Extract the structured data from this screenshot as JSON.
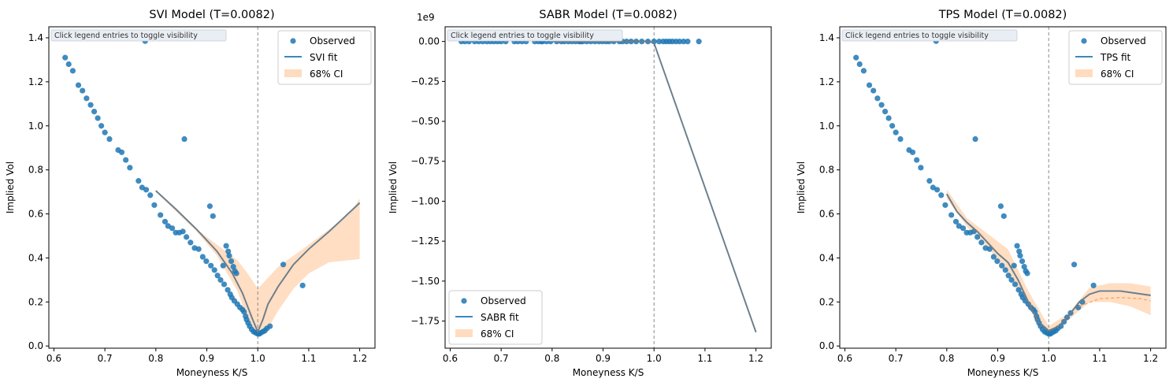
{
  "hint": "Click legend entries to toggle visibility",
  "colors": {
    "observed": "#1f77b4",
    "fit": "#1f77b4",
    "fit_overlay": "#7f7f7f",
    "ci": "#ffdcc0",
    "spot_line": "#888888",
    "tps_dashed": "#ff9f4a"
  },
  "chart_data": [
    {
      "type": "scatter",
      "title": "SVI Model (T=0.0082)",
      "xlabel": "Moneyness K/S",
      "ylabel": "Implied Vol",
      "xlim": [
        0.59,
        1.23
      ],
      "ylim": [
        -0.01,
        1.45
      ],
      "x_ticks": [
        "0.6",
        "0.7",
        "0.8",
        "0.9",
        "1.0",
        "1.1",
        "1.2"
      ],
      "x_tick_values": [
        0.6,
        0.7,
        0.8,
        0.9,
        1.0,
        1.1,
        1.2
      ],
      "y_ticks": [
        "0.0",
        "0.2",
        "0.4",
        "0.6",
        "0.8",
        "1.0",
        "1.2",
        "1.4"
      ],
      "y_tick_values": [
        0.0,
        0.2,
        0.4,
        0.6,
        0.8,
        1.0,
        1.2,
        1.4
      ],
      "y_offset_label": "",
      "legend": {
        "position": "top-right",
        "entries": [
          "Observed",
          "SVI fit",
          "68% CI"
        ]
      },
      "spot_x": 1.0,
      "observed": [
        [
          0.622,
          1.31
        ],
        [
          0.629,
          1.28
        ],
        [
          0.637,
          1.25
        ],
        [
          0.648,
          1.185
        ],
        [
          0.656,
          1.16
        ],
        [
          0.664,
          1.125
        ],
        [
          0.672,
          1.095
        ],
        [
          0.679,
          1.065
        ],
        [
          0.686,
          1.035
        ],
        [
          0.693,
          1.0
        ],
        [
          0.7,
          0.97
        ],
        [
          0.709,
          0.94
        ],
        [
          0.726,
          0.89
        ],
        [
          0.733,
          0.88
        ],
        [
          0.741,
          0.845
        ],
        [
          0.749,
          0.81
        ],
        [
          0.766,
          0.75
        ],
        [
          0.773,
          0.72
        ],
        [
          0.779,
          1.385
        ],
        [
          0.781,
          0.71
        ],
        [
          0.789,
          0.685
        ],
        [
          0.797,
          0.64
        ],
        [
          0.809,
          0.595
        ],
        [
          0.818,
          0.565
        ],
        [
          0.824,
          0.545
        ],
        [
          0.832,
          0.535
        ],
        [
          0.839,
          0.515
        ],
        [
          0.846,
          0.515
        ],
        [
          0.853,
          0.52
        ],
        [
          0.856,
          0.94
        ],
        [
          0.86,
          0.495
        ],
        [
          0.868,
          0.47
        ],
        [
          0.876,
          0.445
        ],
        [
          0.884,
          0.44
        ],
        [
          0.892,
          0.405
        ],
        [
          0.899,
          0.385
        ],
        [
          0.906,
          0.635
        ],
        [
          0.908,
          0.365
        ],
        [
          0.912,
          0.59
        ],
        [
          0.915,
          0.345
        ],
        [
          0.921,
          0.32
        ],
        [
          0.927,
          0.3
        ],
        [
          0.932,
          0.365
        ],
        [
          0.934,
          0.28
        ],
        [
          0.938,
          0.455
        ],
        [
          0.941,
          0.255
        ],
        [
          0.942,
          0.43
        ],
        [
          0.944,
          0.41
        ],
        [
          0.946,
          0.235
        ],
        [
          0.948,
          0.385
        ],
        [
          0.949,
          0.22
        ],
        [
          0.952,
          0.36
        ],
        [
          0.954,
          0.205
        ],
        [
          0.955,
          0.34
        ],
        [
          0.958,
          0.33
        ],
        [
          0.96,
          0.19
        ],
        [
          0.965,
          0.175
        ],
        [
          0.97,
          0.165
        ],
        [
          0.973,
          0.155
        ],
        [
          0.976,
          0.135
        ],
        [
          0.978,
          0.12
        ],
        [
          0.981,
          0.105
        ],
        [
          0.984,
          0.09
        ],
        [
          0.988,
          0.075
        ],
        [
          0.992,
          0.065
        ],
        [
          0.996,
          0.06
        ],
        [
          1.0,
          0.055
        ],
        [
          1.003,
          0.055
        ],
        [
          1.006,
          0.06
        ],
        [
          1.01,
          0.065
        ],
        [
          1.014,
          0.07
        ],
        [
          1.018,
          0.08
        ],
        [
          1.024,
          0.09
        ],
        [
          1.05,
          0.37
        ],
        [
          1.088,
          0.275
        ]
      ],
      "fit": [
        [
          0.8,
          0.705
        ],
        [
          0.84,
          0.62
        ],
        [
          0.88,
          0.53
        ],
        [
          0.92,
          0.43
        ],
        [
          0.95,
          0.33
        ],
        [
          0.97,
          0.24
        ],
        [
          0.99,
          0.12
        ],
        [
          1.0,
          0.065
        ],
        [
          1.01,
          0.12
        ],
        [
          1.02,
          0.19
        ],
        [
          1.04,
          0.27
        ],
        [
          1.07,
          0.37
        ],
        [
          1.1,
          0.44
        ],
        [
          1.14,
          0.52
        ],
        [
          1.2,
          0.65
        ]
      ],
      "ci_band": [
        [
          0.8,
          0.71,
          0.7
        ],
        [
          0.88,
          0.53,
          0.52
        ],
        [
          0.92,
          0.46,
          0.41
        ],
        [
          0.96,
          0.39,
          0.25
        ],
        [
          0.98,
          0.33,
          0.12
        ],
        [
          1.0,
          0.26,
          0.05
        ],
        [
          1.02,
          0.31,
          0.08
        ],
        [
          1.04,
          0.36,
          0.16
        ],
        [
          1.07,
          0.41,
          0.26
        ],
        [
          1.1,
          0.46,
          0.33
        ],
        [
          1.14,
          0.53,
          0.38
        ],
        [
          1.18,
          0.6,
          0.39
        ],
        [
          1.2,
          0.67,
          0.395
        ]
      ],
      "fit_dashed": []
    },
    {
      "type": "scatter",
      "title": "SABR Model (T=0.0082)",
      "xlabel": "Moneyness K/S",
      "ylabel": "Implied Vol",
      "xlim": [
        0.59,
        1.23
      ],
      "ylim": [
        -1.92,
        0.092
      ],
      "x_ticks": [
        "0.6",
        "0.7",
        "0.8",
        "0.9",
        "1.0",
        "1.1",
        "1.2"
      ],
      "x_tick_values": [
        0.6,
        0.7,
        0.8,
        0.9,
        1.0,
        1.1,
        1.2
      ],
      "y_ticks": [
        "0.00",
        "−0.25",
        "−0.50",
        "−0.75",
        "−1.00",
        "−1.25",
        "−1.50",
        "−1.75"
      ],
      "y_tick_values": [
        0.0,
        -0.25,
        -0.5,
        -0.75,
        -1.0,
        -1.25,
        -1.5,
        -1.75
      ],
      "y_offset_label": "1e9",
      "legend": {
        "position": "bottom-left",
        "entries": [
          "Observed",
          "SABR fit",
          "68% CI"
        ]
      },
      "spot_x": 1.0,
      "observed": [
        [
          0.622,
          0
        ],
        [
          0.629,
          0
        ],
        [
          0.637,
          0
        ],
        [
          0.648,
          0
        ],
        [
          0.656,
          0
        ],
        [
          0.664,
          0
        ],
        [
          0.672,
          0
        ],
        [
          0.679,
          0
        ],
        [
          0.686,
          0
        ],
        [
          0.693,
          0
        ],
        [
          0.7,
          0
        ],
        [
          0.709,
          0
        ],
        [
          0.726,
          0
        ],
        [
          0.733,
          0
        ],
        [
          0.741,
          0
        ],
        [
          0.749,
          0
        ],
        [
          0.766,
          0
        ],
        [
          0.773,
          0
        ],
        [
          0.779,
          0
        ],
        [
          0.781,
          0
        ],
        [
          0.789,
          0
        ],
        [
          0.797,
          0
        ],
        [
          0.809,
          0
        ],
        [
          0.818,
          0
        ],
        [
          0.824,
          0
        ],
        [
          0.832,
          0
        ],
        [
          0.839,
          0
        ],
        [
          0.846,
          0
        ],
        [
          0.853,
          0
        ],
        [
          0.856,
          0
        ],
        [
          0.86,
          0
        ],
        [
          0.868,
          0
        ],
        [
          0.876,
          0
        ],
        [
          0.884,
          0
        ],
        [
          0.892,
          0
        ],
        [
          0.899,
          0
        ],
        [
          0.906,
          0
        ],
        [
          0.912,
          0
        ],
        [
          0.921,
          0
        ],
        [
          0.932,
          0
        ],
        [
          0.938,
          0
        ],
        [
          0.946,
          0
        ],
        [
          0.955,
          0
        ],
        [
          0.965,
          0
        ],
        [
          0.976,
          0
        ],
        [
          0.988,
          0
        ],
        [
          1.0,
          0
        ],
        [
          1.01,
          0
        ],
        [
          1.018,
          0
        ],
        [
          1.024,
          0
        ],
        [
          1.03,
          0
        ],
        [
          1.036,
          0
        ],
        [
          1.043,
          0
        ],
        [
          1.05,
          0
        ],
        [
          1.058,
          0
        ],
        [
          1.066,
          0
        ],
        [
          1.088,
          0
        ]
      ],
      "fit": [
        [
          0.8,
          0
        ],
        [
          0.9,
          0
        ],
        [
          0.99,
          0
        ],
        [
          1.0,
          -0.01
        ],
        [
          1.2,
          -1.82
        ]
      ],
      "ci_band": [],
      "fit_dashed": []
    },
    {
      "type": "scatter",
      "title": "TPS Model (T=0.0082)",
      "xlabel": "Moneyness K/S",
      "ylabel": "Implied Vol",
      "xlim": [
        0.59,
        1.23
      ],
      "ylim": [
        -0.01,
        1.45
      ],
      "x_ticks": [
        "0.6",
        "0.7",
        "0.8",
        "0.9",
        "1.0",
        "1.1",
        "1.2"
      ],
      "x_tick_values": [
        0.6,
        0.7,
        0.8,
        0.9,
        1.0,
        1.1,
        1.2
      ],
      "y_ticks": [
        "0.0",
        "0.2",
        "0.4",
        "0.6",
        "0.8",
        "1.0",
        "1.2",
        "1.4"
      ],
      "y_tick_values": [
        0.0,
        0.2,
        0.4,
        0.6,
        0.8,
        1.0,
        1.2,
        1.4
      ],
      "y_offset_label": "",
      "legend": {
        "position": "top-right",
        "entries": [
          "Observed",
          "TPS fit",
          "68% CI"
        ]
      },
      "spot_x": 1.0,
      "observed": [
        [
          0.622,
          1.31
        ],
        [
          0.629,
          1.28
        ],
        [
          0.637,
          1.25
        ],
        [
          0.648,
          1.185
        ],
        [
          0.656,
          1.16
        ],
        [
          0.664,
          1.125
        ],
        [
          0.672,
          1.095
        ],
        [
          0.679,
          1.065
        ],
        [
          0.686,
          1.035
        ],
        [
          0.693,
          1.0
        ],
        [
          0.7,
          0.97
        ],
        [
          0.709,
          0.94
        ],
        [
          0.726,
          0.89
        ],
        [
          0.733,
          0.88
        ],
        [
          0.741,
          0.845
        ],
        [
          0.749,
          0.81
        ],
        [
          0.766,
          0.75
        ],
        [
          0.773,
          0.72
        ],
        [
          0.779,
          1.385
        ],
        [
          0.781,
          0.71
        ],
        [
          0.789,
          0.685
        ],
        [
          0.797,
          0.64
        ],
        [
          0.809,
          0.595
        ],
        [
          0.818,
          0.565
        ],
        [
          0.824,
          0.545
        ],
        [
          0.832,
          0.535
        ],
        [
          0.839,
          0.515
        ],
        [
          0.846,
          0.515
        ],
        [
          0.853,
          0.52
        ],
        [
          0.856,
          0.94
        ],
        [
          0.86,
          0.495
        ],
        [
          0.868,
          0.47
        ],
        [
          0.876,
          0.445
        ],
        [
          0.884,
          0.44
        ],
        [
          0.892,
          0.405
        ],
        [
          0.899,
          0.385
        ],
        [
          0.906,
          0.635
        ],
        [
          0.908,
          0.365
        ],
        [
          0.912,
          0.59
        ],
        [
          0.915,
          0.345
        ],
        [
          0.921,
          0.32
        ],
        [
          0.927,
          0.3
        ],
        [
          0.932,
          0.365
        ],
        [
          0.934,
          0.28
        ],
        [
          0.938,
          0.455
        ],
        [
          0.941,
          0.255
        ],
        [
          0.942,
          0.43
        ],
        [
          0.944,
          0.41
        ],
        [
          0.946,
          0.235
        ],
        [
          0.948,
          0.385
        ],
        [
          0.949,
          0.22
        ],
        [
          0.952,
          0.36
        ],
        [
          0.954,
          0.205
        ],
        [
          0.955,
          0.34
        ],
        [
          0.958,
          0.33
        ],
        [
          0.96,
          0.19
        ],
        [
          0.965,
          0.175
        ],
        [
          0.97,
          0.165
        ],
        [
          0.973,
          0.155
        ],
        [
          0.976,
          0.135
        ],
        [
          0.978,
          0.12
        ],
        [
          0.981,
          0.105
        ],
        [
          0.984,
          0.09
        ],
        [
          0.988,
          0.075
        ],
        [
          0.992,
          0.065
        ],
        [
          0.996,
          0.06
        ],
        [
          1.0,
          0.055
        ],
        [
          1.003,
          0.055
        ],
        [
          1.006,
          0.06
        ],
        [
          1.01,
          0.065
        ],
        [
          1.014,
          0.07
        ],
        [
          1.018,
          0.08
        ],
        [
          1.024,
          0.09
        ],
        [
          1.03,
          0.11
        ],
        [
          1.036,
          0.13
        ],
        [
          1.043,
          0.15
        ],
        [
          1.05,
          0.37
        ],
        [
          1.058,
          0.175
        ],
        [
          1.066,
          0.2
        ],
        [
          1.088,
          0.275
        ]
      ],
      "fit": [
        [
          0.8,
          0.69
        ],
        [
          0.82,
          0.61
        ],
        [
          0.84,
          0.56
        ],
        [
          0.86,
          0.52
        ],
        [
          0.88,
          0.47
        ],
        [
          0.9,
          0.42
        ],
        [
          0.92,
          0.38
        ],
        [
          0.94,
          0.3
        ],
        [
          0.96,
          0.2
        ],
        [
          0.98,
          0.11
        ],
        [
          1.0,
          0.07
        ],
        [
          1.02,
          0.09
        ],
        [
          1.04,
          0.14
        ],
        [
          1.06,
          0.2
        ],
        [
          1.08,
          0.235
        ],
        [
          1.1,
          0.25
        ],
        [
          1.14,
          0.25
        ],
        [
          1.2,
          0.23
        ]
      ],
      "ci_band": [
        [
          0.8,
          0.71,
          0.67
        ],
        [
          0.84,
          0.58,
          0.54
        ],
        [
          0.88,
          0.51,
          0.45
        ],
        [
          0.92,
          0.44,
          0.33
        ],
        [
          0.96,
          0.25,
          0.17
        ],
        [
          1.0,
          0.09,
          0.05
        ],
        [
          1.04,
          0.15,
          0.12
        ],
        [
          1.08,
          0.265,
          0.2
        ],
        [
          1.12,
          0.285,
          0.2
        ],
        [
          1.16,
          0.285,
          0.18
        ],
        [
          1.2,
          0.27,
          0.14
        ]
      ],
      "fit_dashed": [
        [
          1.06,
          0.18
        ],
        [
          1.1,
          0.215
        ],
        [
          1.14,
          0.22
        ],
        [
          1.18,
          0.215
        ],
        [
          1.2,
          0.205
        ]
      ]
    }
  ]
}
